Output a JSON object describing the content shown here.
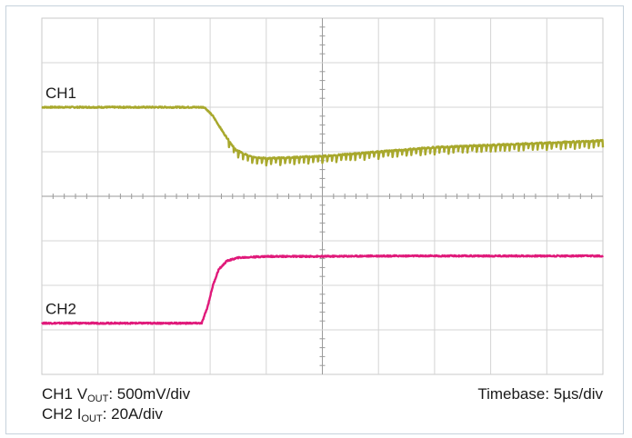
{
  "chart_data": {
    "type": "line",
    "title": "",
    "grid": true,
    "x_divisions": 10,
    "y_divisions": 8,
    "x_unit": "div",
    "xlim": [
      0,
      10
    ],
    "series": [
      {
        "name": "CH1",
        "color": "#a8a82c",
        "x": [
          0,
          2.9,
          3.05,
          3.25,
          3.45,
          3.7,
          4.0,
          5.0,
          6.0,
          7.0,
          8.0,
          9.0,
          10.0
        ],
        "y": [
          6.0,
          6.0,
          5.8,
          5.4,
          5.05,
          4.9,
          4.85,
          4.9,
          5.0,
          5.1,
          5.15,
          5.2,
          5.25
        ],
        "ripple_div": 0.15,
        "ripple_start_x": 3.3
      },
      {
        "name": "CH2",
        "color": "#e0197a",
        "x": [
          0,
          2.85,
          2.95,
          3.05,
          3.15,
          3.3,
          3.5,
          4.0,
          5.0,
          6.0,
          7.0,
          8.0,
          9.0,
          10.0
        ],
        "y": [
          1.15,
          1.15,
          1.5,
          2.0,
          2.35,
          2.55,
          2.62,
          2.65,
          2.65,
          2.66,
          2.66,
          2.66,
          2.66,
          2.66
        ]
      }
    ]
  },
  "labels": {
    "ch1_prefix": "CH1 V",
    "ch1_sub": "OUT",
    "ch1_scale": ": 500mV/div",
    "ch2_prefix": "CH2 I",
    "ch2_sub": "OUT",
    "ch2_scale": ": 20A/div",
    "timebase": "Timebase: 5µs/div"
  }
}
